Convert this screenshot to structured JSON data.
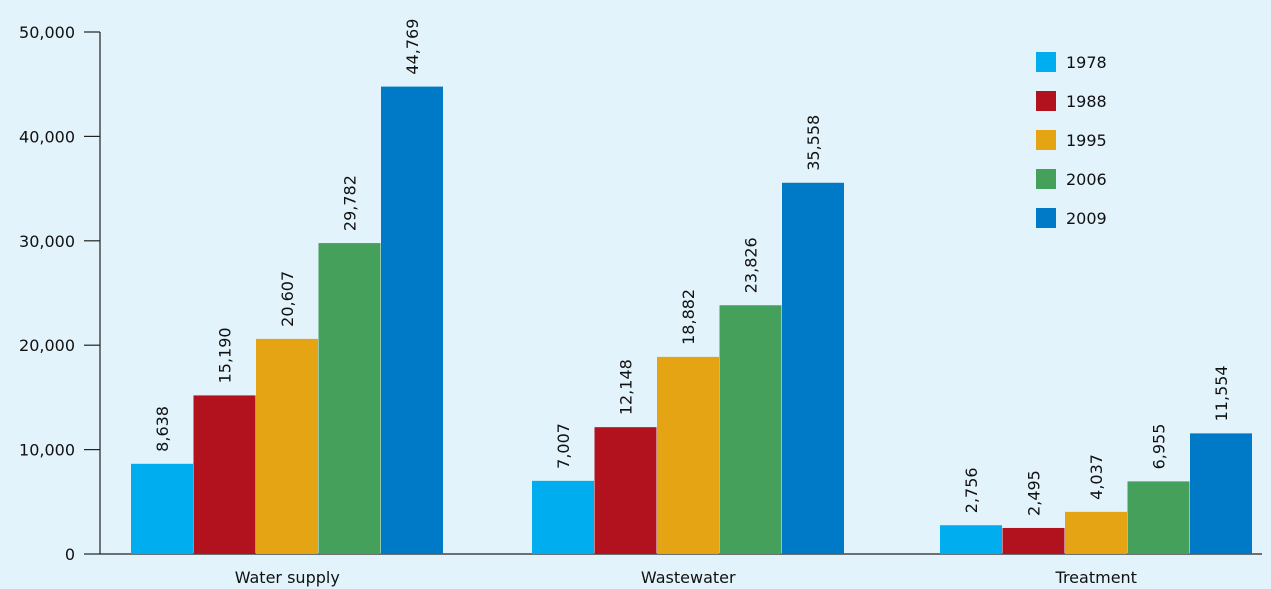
{
  "chart_data": {
    "type": "bar",
    "categories": [
      "Water supply",
      "Wastewater",
      "Treatment"
    ],
    "series": [
      {
        "name": "1978",
        "color": "#00aeef",
        "values": [
          8638,
          7007,
          2756
        ]
      },
      {
        "name": "1988",
        "color": "#b2111e",
        "values": [
          15190,
          12148,
          2495
        ]
      },
      {
        "name": "1995",
        "color": "#e5a413",
        "values": [
          20607,
          18882,
          4037
        ]
      },
      {
        "name": "2006",
        "color": "#44a05a",
        "values": [
          29782,
          23826,
          6955
        ]
      },
      {
        "name": "2009",
        "color": "#007ac6",
        "values": [
          44769,
          35558,
          11554
        ]
      }
    ],
    "data_labels": [
      [
        "8,638",
        "7,007",
        "2,756"
      ],
      [
        "15,190",
        "12,148",
        "2,495"
      ],
      [
        "20,607",
        "18,882",
        "4,037"
      ],
      [
        "29,782",
        "23,826",
        "6,955"
      ],
      [
        "44,769",
        "35,558",
        "11,554"
      ]
    ],
    "y_ticks": [
      {
        "value": 0,
        "label": "0"
      },
      {
        "value": 10000,
        "label": "10,000"
      },
      {
        "value": 20000,
        "label": "20,000"
      },
      {
        "value": 30000,
        "label": "30,000"
      },
      {
        "value": 40000,
        "label": "40,000"
      },
      {
        "value": 50000,
        "label": "50,000"
      }
    ],
    "ylim": [
      0,
      50000
    ],
    "title": "",
    "xlabel": "",
    "ylabel": "",
    "grid": false,
    "legend_position": "top-right",
    "background_color": "#e2f3fb"
  }
}
